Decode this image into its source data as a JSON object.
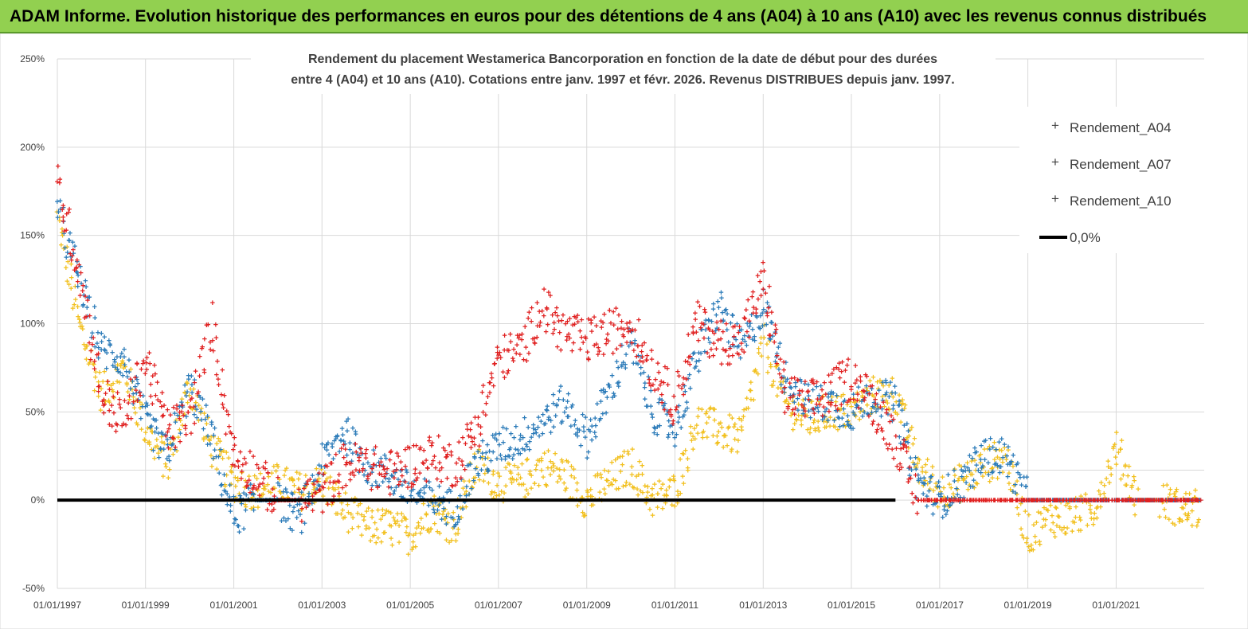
{
  "banner": {
    "title": "ADAM Informe. Evolution historique des performances en euros pour des détentions de 4 ans (A04) à 10 ans (A10) avec les revenus connus distribués"
  },
  "chart_data": {
    "type": "scatter",
    "title_lines": [
      "Rendement du placement Westamerica Bancorporation en fonction de la date de début pour des durées",
      "entre 4 (A04) et 10 ans (A10).  Cotations entre janv. 1997 et févr. 2026. Revenus DISTRIBUES depuis janv. 1997."
    ],
    "x_range": [
      "1997-01-01",
      "2022-12-31"
    ],
    "ylim": [
      -50,
      250
    ],
    "y_unit": "%",
    "y_ticks": [
      -50,
      0,
      50,
      100,
      150,
      200,
      250
    ],
    "y_tick_labels": [
      "-50%",
      "0%",
      "50%",
      "100%",
      "150%",
      "200%",
      "250%"
    ],
    "x_tick_labels": [
      "01/01/1997",
      "01/01/1999",
      "01/01/2001",
      "01/01/2003",
      "01/01/2005",
      "01/01/2007",
      "01/01/2009",
      "01/01/2011",
      "01/01/2013",
      "01/01/2015",
      "01/01/2017",
      "01/01/2019",
      "01/01/2021"
    ],
    "grid": true,
    "legend_position": "top-right",
    "x_dates": [
      "1997-01",
      "1997-07",
      "1998-01",
      "1998-07",
      "1999-01",
      "1999-07",
      "2000-01",
      "2000-07",
      "2001-01",
      "2001-07",
      "2002-01",
      "2002-07",
      "2003-01",
      "2003-07",
      "2004-01",
      "2004-07",
      "2005-01",
      "2005-07",
      "2006-01",
      "2006-07",
      "2007-01",
      "2007-07",
      "2008-01",
      "2008-07",
      "2009-01",
      "2009-07",
      "2010-01",
      "2010-07",
      "2011-01",
      "2011-07",
      "2012-01",
      "2012-07",
      "2013-01",
      "2013-07",
      "2014-01",
      "2014-07",
      "2015-01",
      "2015-07",
      "2016-01",
      "2016-07",
      "2017-01",
      "2017-07",
      "2018-01",
      "2018-07",
      "2019-01",
      "2019-07",
      "2020-01",
      "2020-07",
      "2021-01",
      "2021-07",
      "2022-01",
      "2022-07",
      "2022-12"
    ],
    "series": [
      {
        "name": "Rendement_A04",
        "color": "#f2c01e",
        "values": [
          160,
          100,
          60,
          75,
          40,
          20,
          65,
          30,
          10,
          5,
          10,
          5,
          10,
          -5,
          -15,
          -15,
          -20,
          -5,
          -15,
          20,
          10,
          10,
          20,
          15,
          0,
          10,
          20,
          0,
          5,
          45,
          40,
          35,
          90,
          55,
          45,
          50,
          50,
          60,
          60,
          20,
          5,
          10,
          20,
          25,
          -20,
          -10,
          -10,
          -5,
          30,
          0,
          0,
          -5,
          -5
        ]
      },
      {
        "name": "Rendement_A07",
        "color": "#2a7ab8",
        "values": [
          165,
          125,
          85,
          80,
          45,
          25,
          65,
          35,
          -10,
          0,
          0,
          -10,
          20,
          40,
          20,
          15,
          5,
          0,
          -5,
          20,
          30,
          35,
          45,
          55,
          35,
          60,
          90,
          50,
          40,
          80,
          110,
          85,
          110,
          70,
          55,
          55,
          50,
          60,
          55,
          10,
          0,
          10,
          25,
          25,
          0,
          0,
          0,
          0,
          0,
          0,
          0,
          0,
          0
        ]
      },
      {
        "name": "Rendement_A10",
        "color": "#e02020",
        "values": [
          180,
          130,
          60,
          45,
          80,
          40,
          45,
          100,
          25,
          15,
          0,
          0,
          5,
          20,
          20,
          15,
          20,
          25,
          20,
          40,
          80,
          85,
          110,
          95,
          90,
          95,
          100,
          75,
          55,
          100,
          90,
          90,
          125,
          60,
          55,
          60,
          70,
          55,
          35,
          0,
          0,
          0,
          0,
          0,
          0,
          0,
          0,
          0,
          0,
          0,
          0,
          0,
          0
        ]
      },
      {
        "name": "0,0%",
        "color": "#000000",
        "values": [
          0,
          0,
          0,
          0,
          0,
          0,
          0,
          0,
          0,
          0,
          0,
          0,
          0,
          0,
          0,
          0,
          0,
          0,
          0,
          0,
          0,
          0,
          0,
          0,
          0,
          0,
          0,
          0,
          0,
          0,
          0,
          0,
          0,
          0,
          0,
          0,
          0,
          0,
          0,
          0,
          0,
          0,
          0,
          0,
          0,
          0,
          0,
          0,
          0,
          0,
          0,
          0,
          0
        ]
      }
    ]
  }
}
